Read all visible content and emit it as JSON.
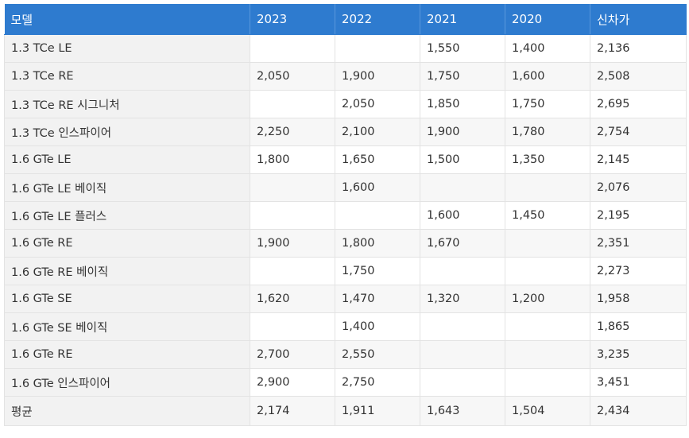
{
  "table": {
    "headers": [
      "모델",
      "2023",
      "2022",
      "2021",
      "2020",
      "신차가"
    ],
    "rows": [
      {
        "model": "1.3 TCe LE",
        "y2023": "",
        "y2022": "",
        "y2021": "1,550",
        "y2020": "1,400",
        "new_price": "2,136"
      },
      {
        "model": "1.3 TCe RE",
        "y2023": "2,050",
        "y2022": "1,900",
        "y2021": "1,750",
        "y2020": "1,600",
        "new_price": "2,508"
      },
      {
        "model": "1.3 TCe RE 시그니처",
        "y2023": "",
        "y2022": "2,050",
        "y2021": "1,850",
        "y2020": "1,750",
        "new_price": "2,695"
      },
      {
        "model": "1.3 TCe 인스파이어",
        "y2023": "2,250",
        "y2022": "2,100",
        "y2021": "1,900",
        "y2020": "1,780",
        "new_price": "2,754"
      },
      {
        "model": "1.6 GTe LE",
        "y2023": "1,800",
        "y2022": "1,650",
        "y2021": "1,500",
        "y2020": "1,350",
        "new_price": "2,145"
      },
      {
        "model": "1.6 GTe LE 베이직",
        "y2023": "",
        "y2022": "1,600",
        "y2021": "",
        "y2020": "",
        "new_price": "2,076"
      },
      {
        "model": "1.6 GTe LE 플러스",
        "y2023": "",
        "y2022": "",
        "y2021": "1,600",
        "y2020": "1,450",
        "new_price": "2,195"
      },
      {
        "model": "1.6 GTe RE",
        "y2023": "1,900",
        "y2022": "1,800",
        "y2021": "1,670",
        "y2020": "",
        "new_price": "2,351"
      },
      {
        "model": "1.6 GTe RE 베이직",
        "y2023": "",
        "y2022": "1,750",
        "y2021": "",
        "y2020": "",
        "new_price": "2,273"
      },
      {
        "model": "1.6 GTe SE",
        "y2023": "1,620",
        "y2022": "1,470",
        "y2021": "1,320",
        "y2020": "1,200",
        "new_price": "1,958"
      },
      {
        "model": "1.6 GTe SE 베이직",
        "y2023": "",
        "y2022": "1,400",
        "y2021": "",
        "y2020": "",
        "new_price": "1,865"
      },
      {
        "model": "1.6 GTe RE",
        "y2023": "2,700",
        "y2022": "2,550",
        "y2021": "",
        "y2020": "",
        "new_price": "3,235"
      },
      {
        "model": "1.6 GTe 인스파이어",
        "y2023": "2,900",
        "y2022": "2,750",
        "y2021": "",
        "y2020": "",
        "new_price": "3,451"
      }
    ],
    "average": {
      "model": "평균",
      "y2023": "2,174",
      "y2022": "1,911",
      "y2021": "1,643",
      "y2020": "1,504",
      "new_price": "2,434"
    }
  },
  "colors": {
    "header_bg": "#2e7bcf",
    "header_text": "#ffffff",
    "model_cell_bg": "#f2f2f2",
    "border": "#e3e3e3"
  }
}
